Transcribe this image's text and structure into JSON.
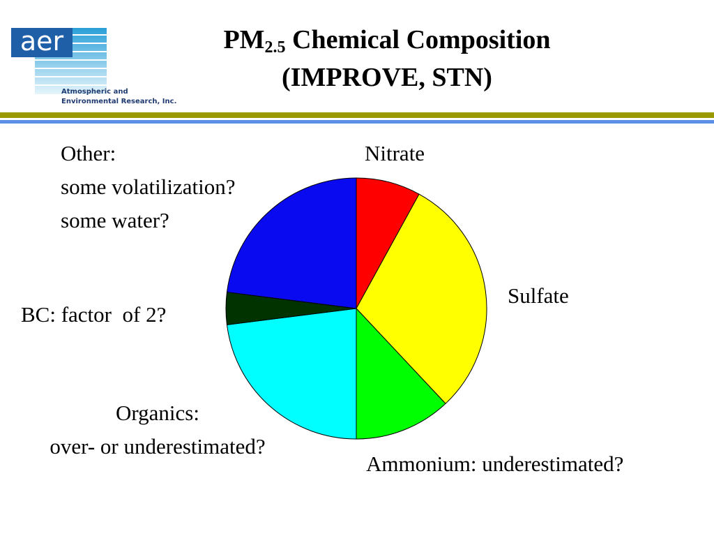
{
  "logo": {
    "mark": "aer",
    "line1": "Atmospheric and",
    "line2": "Environmental Research, Inc."
  },
  "chart_data": {
    "type": "pie",
    "title": {
      "main": "PM",
      "subscript": "2.5",
      "rest": " Chemical Composition",
      "line2": "(IMPROVE, STN)"
    },
    "categories": [
      "Nitrate",
      "Sulfate",
      "Ammonium: underestimated?",
      "Organics:\nover- or underestimated?",
      "BC: factor  of 2?",
      "Other:\nsome volatilization?\nsome water?"
    ],
    "values": [
      8,
      30,
      12,
      23,
      4,
      23
    ],
    "colors": [
      "#ff0000",
      "#ffff00",
      "#00ff00",
      "#00ffff",
      "#003300",
      "#0a0af0"
    ]
  }
}
